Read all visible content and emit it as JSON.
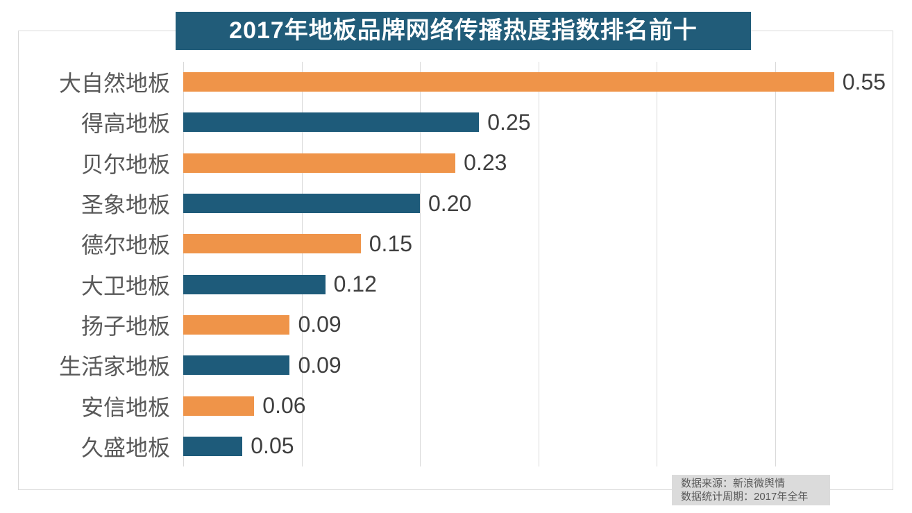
{
  "chart_data": {
    "type": "bar",
    "orientation": "horizontal",
    "title": "2017年地板品牌网络传播热度指数排名前十",
    "categories": [
      "大自然地板",
      "得高地板",
      "贝尔地板",
      "圣象地板",
      "德尔地板",
      "大卫地板",
      "扬子地板",
      "生活家地板",
      "安信地板",
      "久盛地板"
    ],
    "values": [
      0.55,
      0.25,
      0.23,
      0.2,
      0.15,
      0.12,
      0.09,
      0.09,
      0.06,
      0.05
    ],
    "value_labels": [
      "0.55",
      "0.25",
      "0.23",
      "0.20",
      "0.15",
      "0.12",
      "0.09",
      "0.09",
      "0.06",
      "0.05"
    ],
    "xlabel": "",
    "ylabel": "",
    "xlim": [
      0,
      0.6
    ],
    "gridline_interval": 0.1,
    "grid": "vertical-only",
    "legend": "none",
    "bar_color_pattern": "alternating"
  },
  "source_note": {
    "line1": "数据来源：新浪微舆情",
    "line2": "数据统计周期：2017年全年"
  },
  "colors": {
    "orange_bar": "#EF9449",
    "teal_bar": "#1E5B7A",
    "title_bg": "#215C79",
    "title_text": "#FFFFFF",
    "gridline": "#D9D9D9",
    "frame_border": "#D9D9D9",
    "category_text": "#595959",
    "value_text": "#3F3F3F",
    "source_bg": "#DBDBDB",
    "source_text": "#595959",
    "background": "#FFFFFF"
  }
}
